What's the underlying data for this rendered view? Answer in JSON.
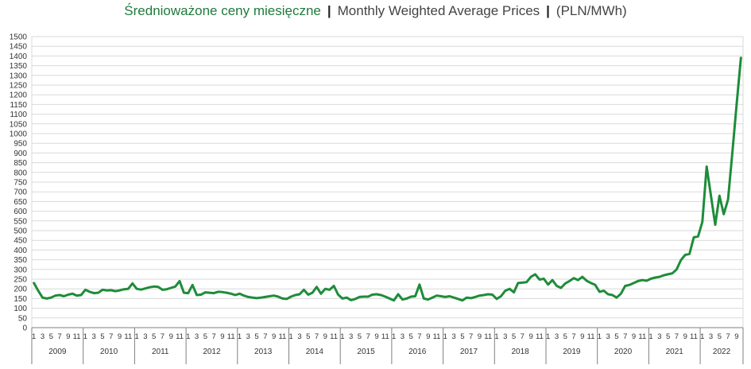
{
  "title_pl": "Średnioważone ceny miesięczne",
  "title_sep": "|",
  "title_en": "Monthly Weighted Average Prices",
  "title_unit": "(PLN/MWh)",
  "colors": {
    "line": "#1e8c3a",
    "grid": "#d9d9d9",
    "axis": "#7f7f7f",
    "title_pl": "#1f7a3c"
  },
  "chart_data": {
    "type": "line",
    "title": "Średnioważone ceny miesięczne | Monthly Weighted Average Prices | (PLN/MWh)",
    "xlabel": "",
    "ylabel": "",
    "ylim": [
      0,
      1500
    ],
    "ytick_step": 50,
    "grid": "horizontal",
    "legend": "none",
    "month_tick_labels": [
      "1",
      "3",
      "5",
      "7",
      "9",
      "11"
    ],
    "years": [
      "2009",
      "2010",
      "2011",
      "2012",
      "2013",
      "2014",
      "2015",
      "2016",
      "2017",
      "2018",
      "2019",
      "2020",
      "2021",
      "2022"
    ],
    "start": "2009-01",
    "series": [
      {
        "values": [
          230,
          190,
          155,
          150,
          155,
          165,
          168,
          162,
          170,
          175,
          165,
          168,
          195,
          185,
          178,
          180,
          195,
          192,
          193,
          188,
          192,
          198,
          200,
          228,
          200,
          196,
          202,
          208,
          212,
          210,
          195,
          198,
          205,
          212,
          240,
          180,
          178,
          220,
          168,
          170,
          182,
          180,
          178,
          185,
          183,
          180,
          175,
          168,
          175,
          165,
          158,
          155,
          152,
          155,
          158,
          162,
          165,
          160,
          150,
          148,
          160,
          168,
          172,
          195,
          170,
          180,
          210,
          175,
          200,
          195,
          215,
          170,
          150,
          155,
          142,
          148,
          158,
          160,
          160,
          170,
          172,
          168,
          160,
          150,
          140,
          172,
          145,
          150,
          160,
          162,
          222,
          150,
          145,
          155,
          165,
          162,
          158,
          162,
          155,
          148,
          140,
          155,
          152,
          158,
          165,
          168,
          172,
          170,
          148,
          162,
          190,
          200,
          182,
          230,
          232,
          235,
          262,
          275,
          248,
          252,
          222,
          245,
          215,
          205,
          228,
          240,
          255,
          245,
          262,
          242,
          230,
          220,
          185,
          190,
          172,
          168,
          155,
          175,
          215,
          220,
          230,
          240,
          245,
          242,
          252,
          258,
          262,
          270,
          275,
          280,
          300,
          348,
          375,
          380,
          465,
          470,
          545,
          830,
          680,
          530,
          680,
          585,
          660,
          900,
          1150,
          1390
        ]
      }
    ]
  }
}
